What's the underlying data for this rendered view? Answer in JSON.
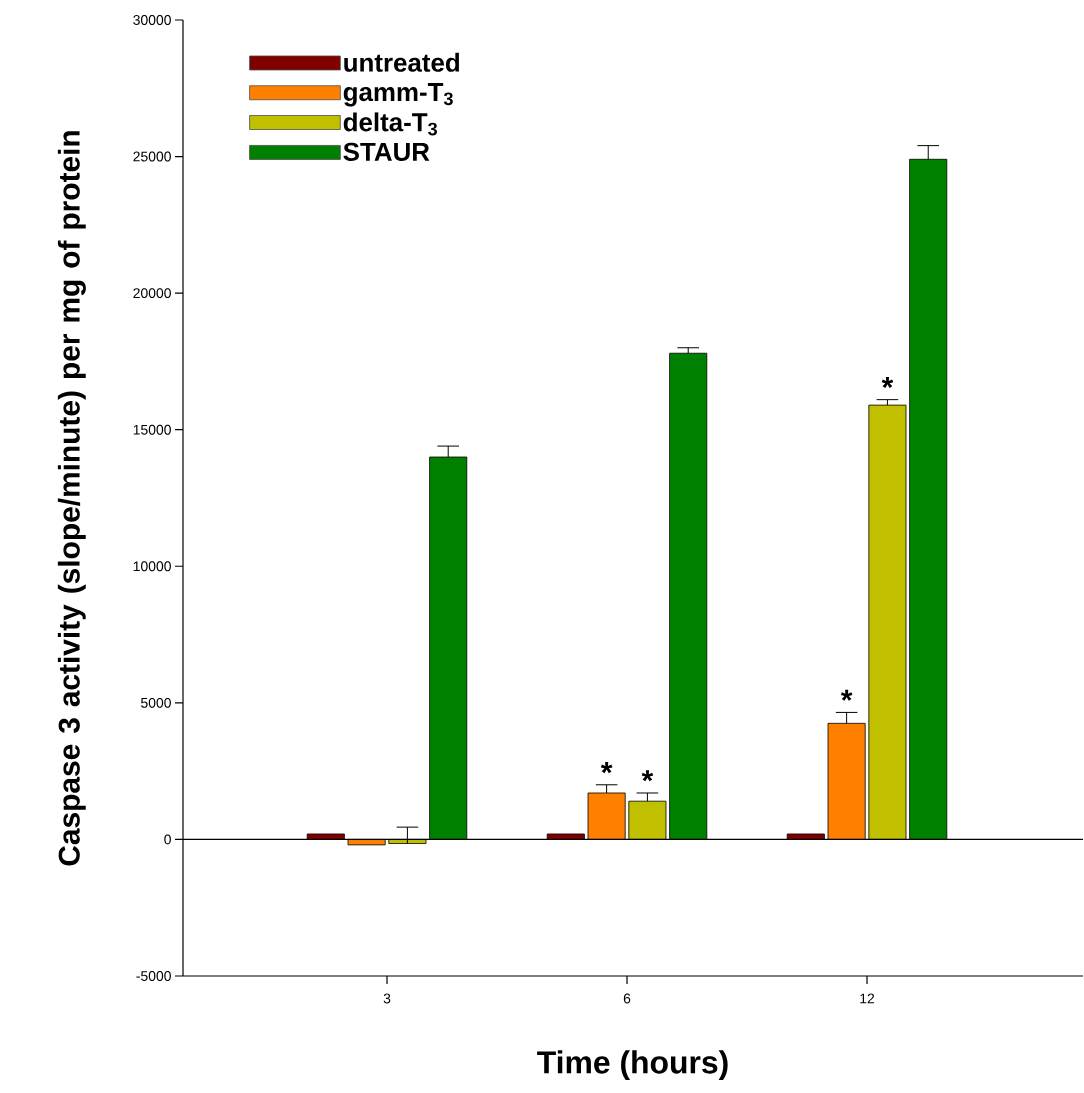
{
  "chart_data": {
    "type": "bar",
    "xlabel": "Time (hours)",
    "ylabel": "Caspase 3 activity (slope/minute) per mg of protein",
    "categories": [
      "3",
      "6",
      "12"
    ],
    "series": [
      {
        "name": "untreated",
        "color": "#800000",
        "values": [
          200,
          200,
          200
        ]
      },
      {
        "name": "gamm-T$_{3}$",
        "color": "#ff8000",
        "values": [
          -200,
          1700,
          4250
        ],
        "errors": [
          null,
          [
            1700,
            2000
          ],
          [
            4250,
            4650
          ]
        ],
        "value_labels": [
          null,
          "*",
          "*"
        ]
      },
      {
        "name": "delta-T$_{3}$",
        "color": "#c0c000",
        "values": [
          -150,
          1400,
          15900
        ],
        "errors": [
          [
            -150,
            450
          ],
          [
            1400,
            1700
          ],
          [
            15900,
            16100
          ]
        ],
        "value_labels": [
          null,
          "*",
          "*"
        ]
      },
      {
        "name": "STAUR",
        "color": "#008000",
        "values": [
          14000,
          17800,
          24900
        ],
        "errors": [
          [
            14000,
            14400
          ],
          [
            17800,
            18000
          ],
          [
            24900,
            25400
          ]
        ]
      }
    ],
    "ylim": [
      -5000,
      30000
    ],
    "yticks": [
      -5000,
      0,
      5000,
      10000,
      15000,
      20000,
      25000,
      30000
    ],
    "ref_lines": [
      {
        "axis": "y",
        "value": 0
      }
    ],
    "legend": "top left"
  }
}
